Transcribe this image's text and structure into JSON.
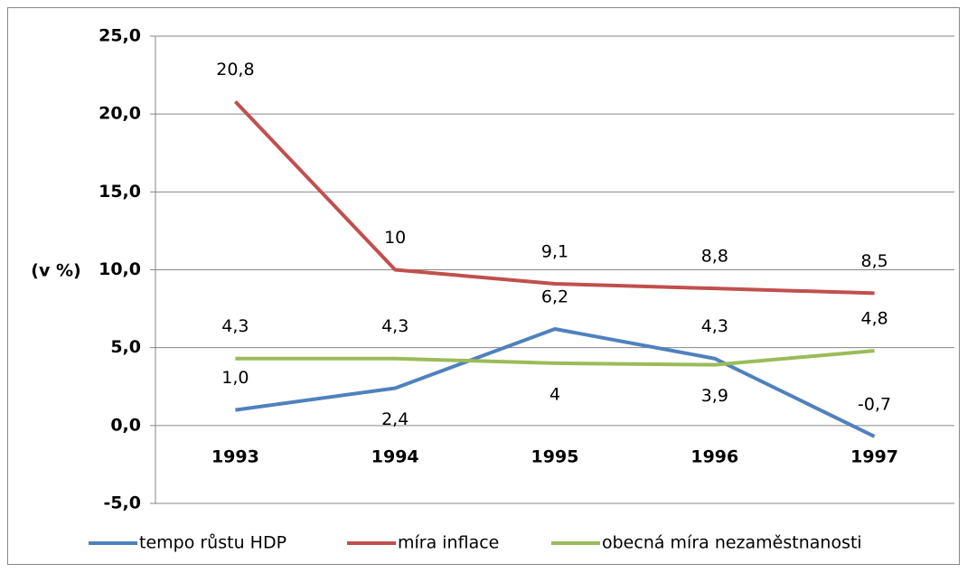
{
  "chart_data": {
    "type": "line",
    "y_label": "(v %)",
    "categories": [
      "1993",
      "1994",
      "1995",
      "1996",
      "1997"
    ],
    "series": [
      {
        "name": "tempo růstu HDP",
        "color": "#4f81bd",
        "values": [
          1.0,
          2.4,
          6.2,
          4.3,
          -0.7
        ],
        "value_labels": [
          "1,0",
          "2,4",
          "6,2",
          "4,3",
          "-0,7"
        ]
      },
      {
        "name": "míra inflace",
        "color": "#c0504d",
        "values": [
          20.8,
          10,
          9.1,
          8.8,
          8.5
        ],
        "value_labels": [
          "20,8",
          "10",
          "9,1",
          "8,8",
          "8,5"
        ]
      },
      {
        "name": "obecná míra nezaměstnanosti",
        "color": "#9bbb59",
        "values": [
          4.3,
          4.3,
          4,
          3.9,
          4.8
        ],
        "value_labels": [
          "4,3",
          "4,3",
          "4",
          "3,9",
          "4,8"
        ]
      }
    ],
    "ylim": [
      -5,
      25
    ],
    "yticks": [
      {
        "value": -5,
        "label": "-5,0"
      },
      {
        "value": 0,
        "label": "0,0"
      },
      {
        "value": 5,
        "label": "5,0"
      },
      {
        "value": 10,
        "label": "10,0"
      },
      {
        "value": 15,
        "label": "15,0"
      },
      {
        "value": 20,
        "label": "20,0"
      },
      {
        "value": 25,
        "label": "25,0"
      }
    ],
    "grid": true,
    "legend": "bottom"
  }
}
